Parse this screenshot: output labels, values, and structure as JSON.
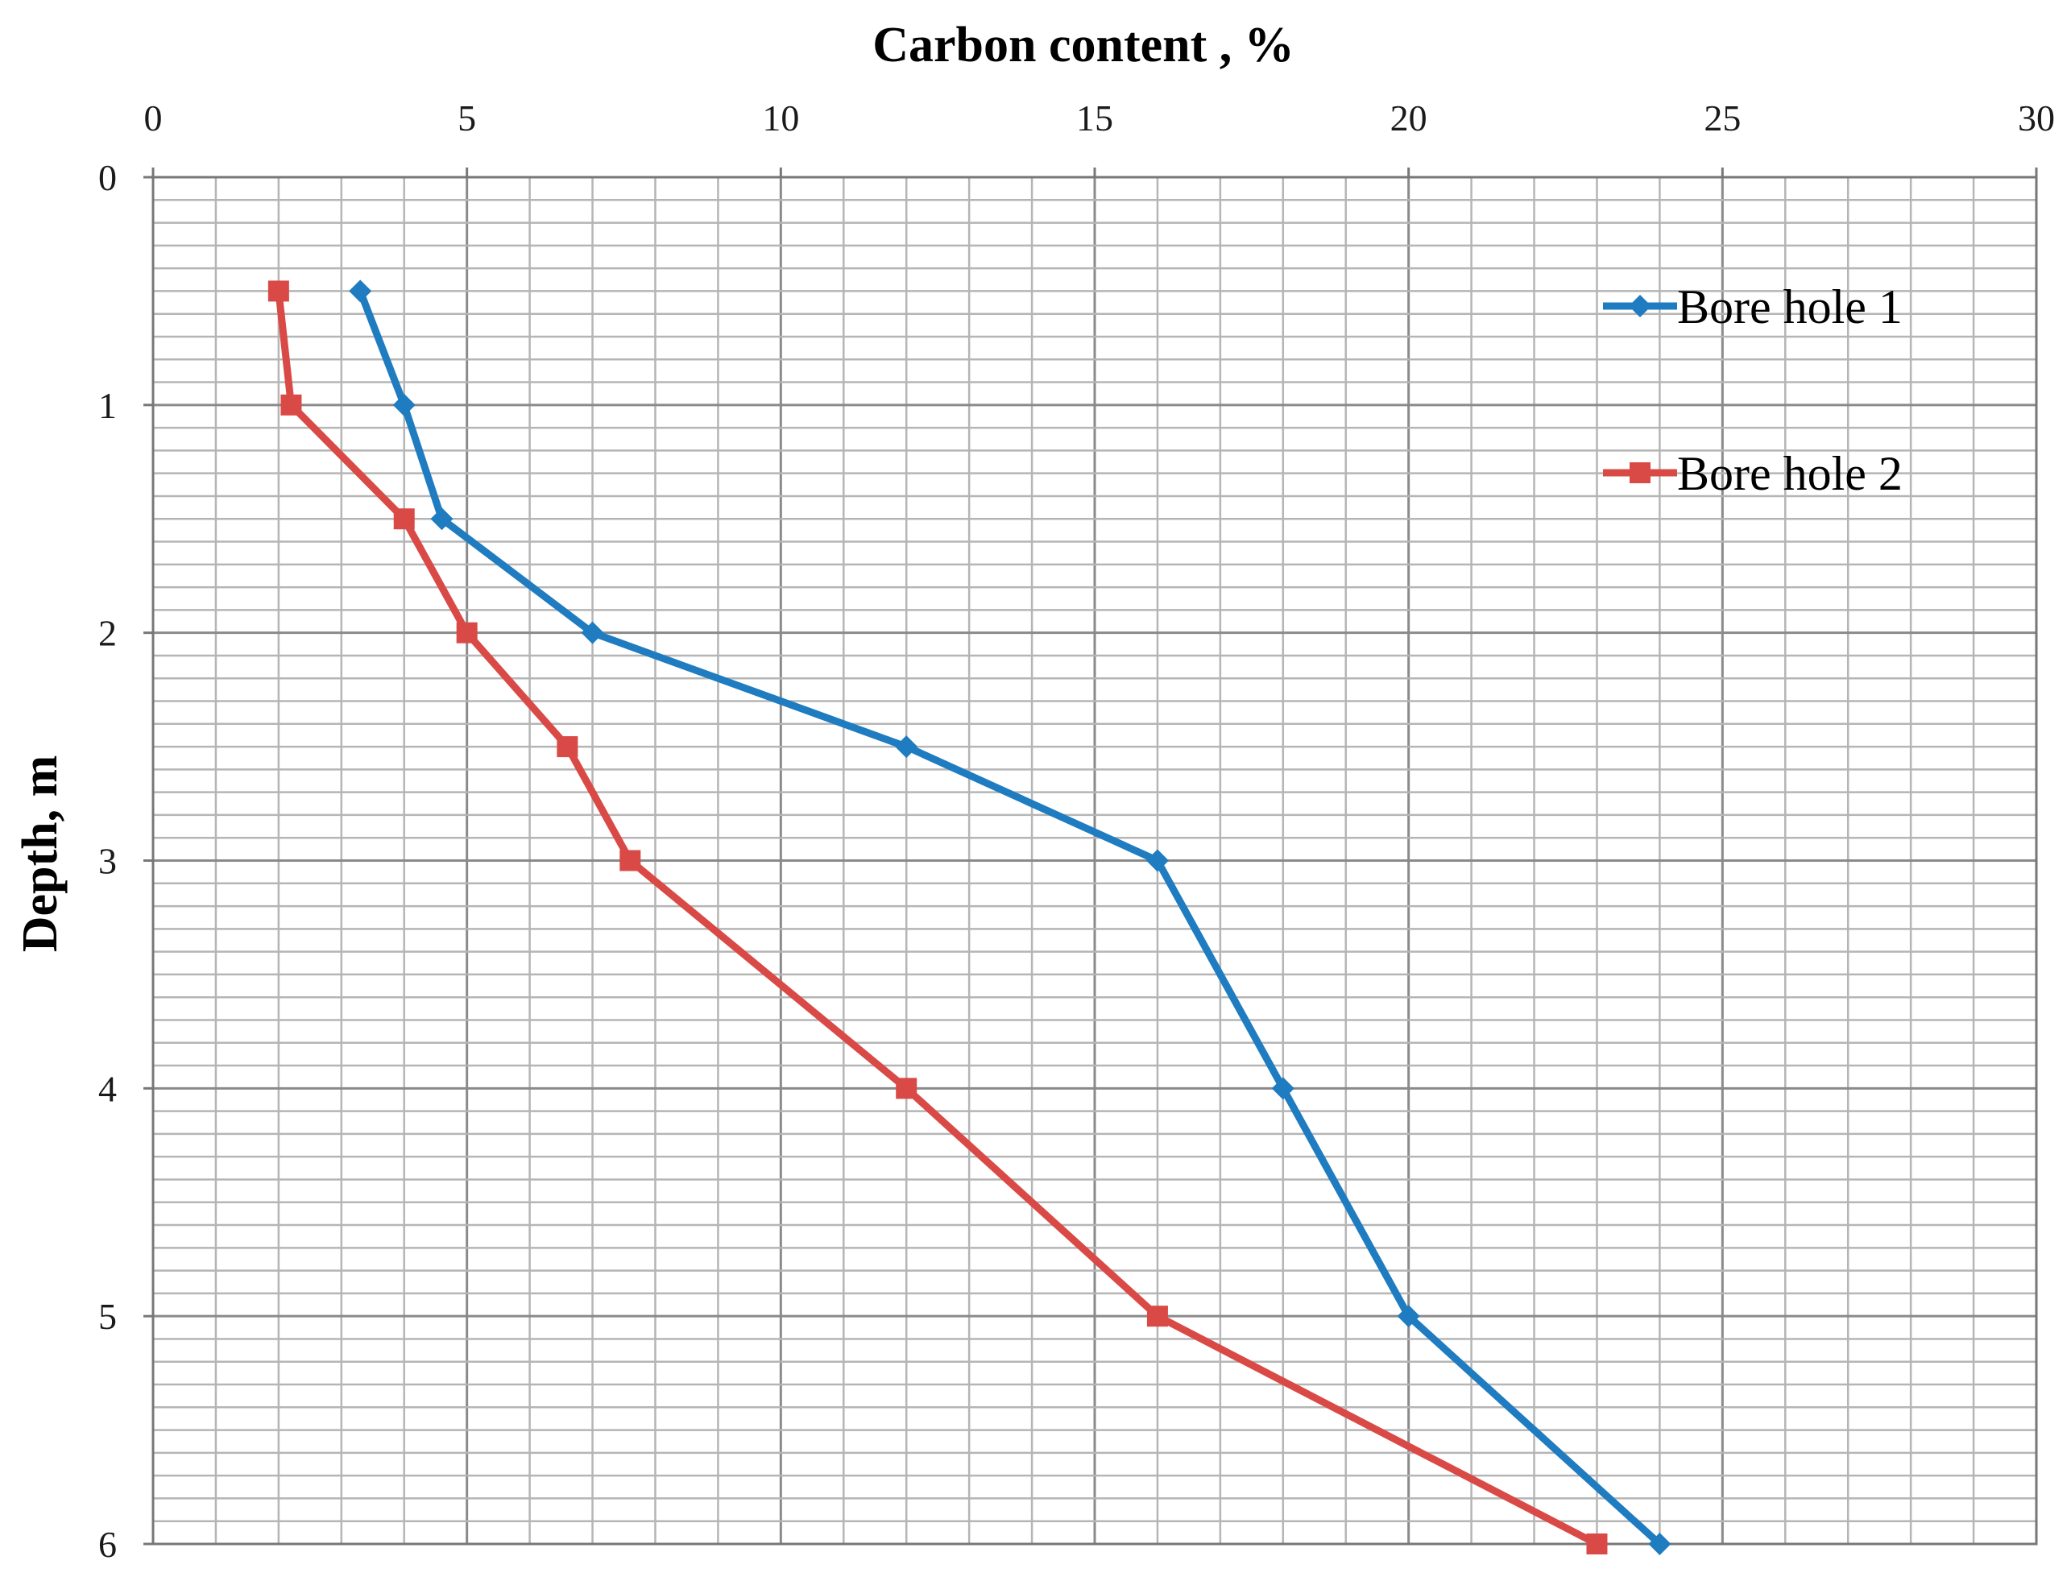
{
  "chart_data": {
    "type": "line",
    "title": "Carbon content , %",
    "xlabel": "Carbon content , %",
    "ylabel": "Depth, m",
    "xlim": [
      0,
      30
    ],
    "ylim": [
      0,
      6
    ],
    "y_inverted": true,
    "x_axis_position": "top",
    "x_ticks": [
      "0",
      "5",
      "10",
      "15",
      "20",
      "25",
      "30"
    ],
    "y_ticks": [
      "0",
      "1",
      "2",
      "3",
      "4",
      "5",
      "6"
    ],
    "grid": true,
    "legend_position": "top-right",
    "series": [
      {
        "name": "Bore hole 1",
        "color": "#1f7cc0",
        "marker": "diamond",
        "x": [
          3.3,
          4.0,
          4.6,
          7.0,
          12.0,
          16.0,
          18.0,
          20.0,
          24.0
        ],
        "y": [
          0.5,
          1.0,
          1.5,
          2.0,
          2.5,
          3.0,
          4.0,
          5.0,
          6.0
        ]
      },
      {
        "name": "Bore hole 2",
        "color": "#d94a47",
        "marker": "square",
        "x": [
          2.0,
          2.2,
          4.0,
          5.0,
          6.6,
          7.6,
          12.0,
          16.0,
          23.0
        ],
        "y": [
          0.5,
          1.0,
          1.5,
          2.0,
          2.5,
          3.0,
          4.0,
          5.0,
          6.0
        ]
      }
    ]
  }
}
